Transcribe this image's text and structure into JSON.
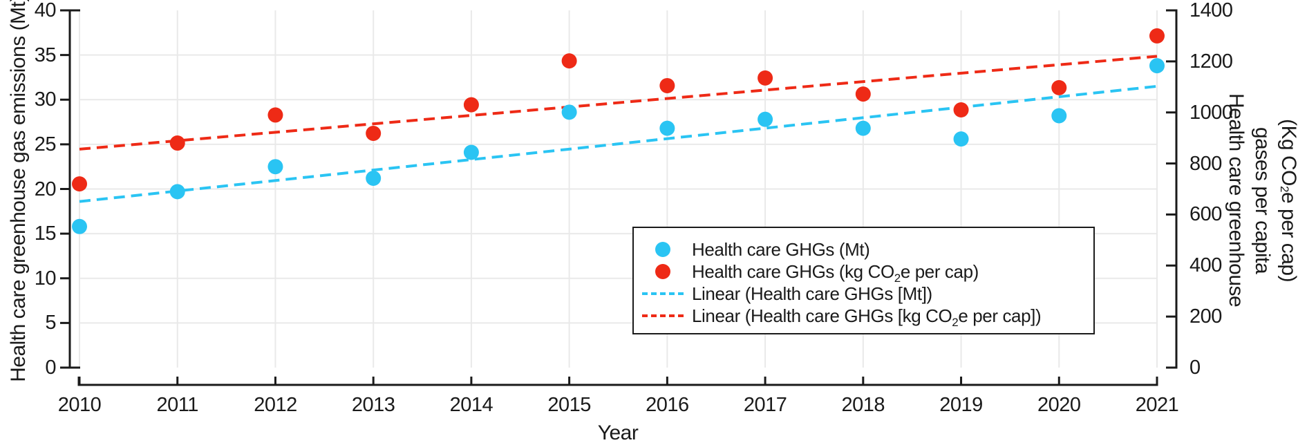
{
  "colors": {
    "blue": "#2ac4f3",
    "red": "#ee2a16",
    "axis": "#1a1a1a",
    "grid": "#e9e9e9",
    "background": "#ffffff"
  },
  "chart_data": {
    "type": "scatter",
    "x": [
      2010,
      2011,
      2012,
      2013,
      2014,
      2015,
      2016,
      2017,
      2018,
      2019,
      2020,
      2021
    ],
    "xlabel": "Year",
    "series": [
      {
        "key": "mt",
        "name": "Health care GHGs (Mt)",
        "axis": "left",
        "color_key": "blue",
        "values": [
          15.8,
          19.7,
          22.5,
          21.2,
          24.1,
          28.6,
          26.8,
          27.8,
          26.8,
          25.6,
          28.2,
          33.8
        ]
      },
      {
        "key": "percap",
        "name": "Health care GHGs (kg CO2e per cap)",
        "axis": "right",
        "color_key": "red",
        "values": [
          720,
          880,
          990,
          918,
          1030,
          1202,
          1105,
          1135,
          1072,
          1010,
          1097,
          1300
        ]
      }
    ],
    "trendlines": [
      {
        "key": "linear-mt",
        "name": "Linear (Health care GHGs [Mt])",
        "axis": "left",
        "color_key": "blue",
        "start": 18.6,
        "end": 31.5
      },
      {
        "key": "linear-percap",
        "name": "Linear (Health care GHGs [kg CO2e per cap])",
        "axis": "right",
        "color_key": "red",
        "start": 856,
        "end": 1220
      }
    ],
    "left_axis": {
      "title": "Health care greenhouse gas emissions (Mt)",
      "ticks": [
        0,
        5,
        10,
        15,
        20,
        25,
        30,
        35,
        40
      ],
      "range": [
        0,
        40
      ],
      "grid": true
    },
    "right_axis": {
      "title_line1": "Health care greenhouse gases per capita",
      "title_line2_pre": "(Kg CO",
      "title_line2_sub": "2",
      "title_line2_post": "e per cap)",
      "ticks": [
        0,
        200,
        400,
        600,
        800,
        1000,
        1200,
        1400
      ],
      "range": [
        0,
        1400
      ],
      "grid": false
    },
    "legend_position": "inside-right"
  },
  "legend": {
    "items": [
      {
        "marker": "dot",
        "color_key": "blue",
        "pre": "Health care GHGs (Mt)",
        "sub": "",
        "post": ""
      },
      {
        "marker": "dot",
        "color_key": "red",
        "pre": "Health care GHGs (kg CO",
        "sub": "2",
        "post": "e per cap)"
      },
      {
        "marker": "dash",
        "color_key": "blue",
        "pre": "Linear (Health care GHGs [Mt])",
        "sub": "",
        "post": ""
      },
      {
        "marker": "dash",
        "color_key": "red",
        "pre": "Linear (Health care GHGs [kg CO",
        "sub": "2",
        "post": "e per cap])"
      }
    ]
  }
}
